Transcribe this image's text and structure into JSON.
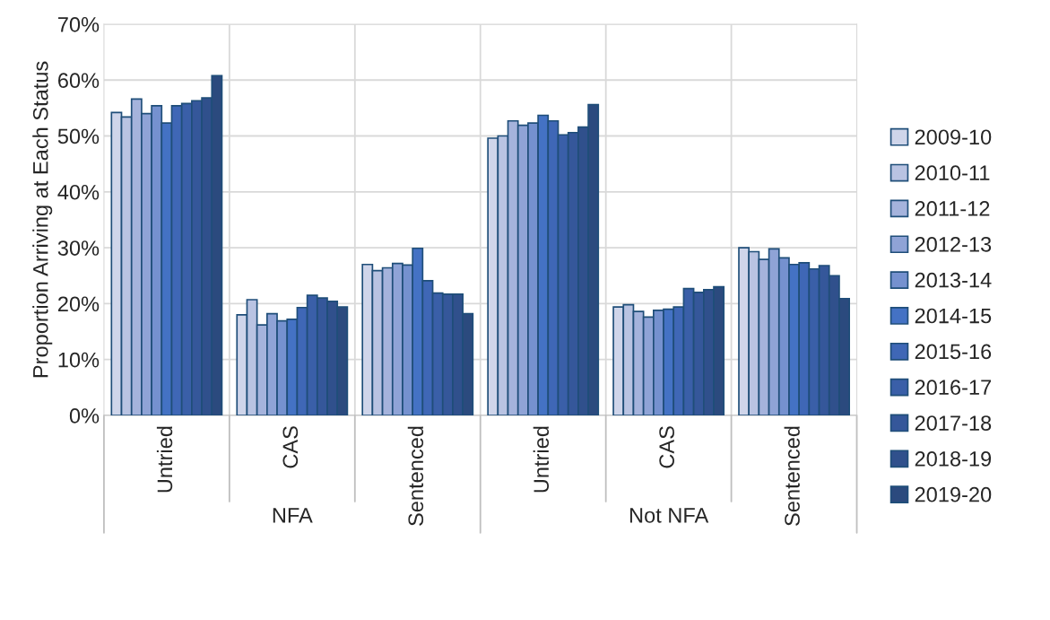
{
  "chart_data": {
    "type": "bar",
    "ylabel": "Proportion Arriving at Each Status",
    "categories": [
      "Untried",
      "CAS",
      "Sentenced",
      "Untried",
      "CAS",
      "Sentenced"
    ],
    "annotations": [
      "NFA",
      "Not NFA"
    ],
    "ylim": [
      0,
      70
    ],
    "yticks": [
      {
        "value": 0,
        "label": "0%"
      },
      {
        "value": 10,
        "label": "10%"
      },
      {
        "value": 20,
        "label": "20%"
      },
      {
        "value": 30,
        "label": "30%"
      },
      {
        "value": 40,
        "label": "40%"
      },
      {
        "value": 50,
        "label": "50%"
      },
      {
        "value": 60,
        "label": "60%"
      },
      {
        "value": 70,
        "label": "70%"
      }
    ],
    "grid": true,
    "legend": "right",
    "series": [
      {
        "name": "2009-10",
        "color": "#cfd5ea",
        "values": [
          54.2,
          18.0,
          27.0,
          49.6,
          19.4,
          30.0
        ]
      },
      {
        "name": "2010-11",
        "color": "#b9c3e2",
        "values": [
          53.4,
          20.7,
          25.9,
          50.0,
          19.8,
          29.3
        ]
      },
      {
        "name": "2011-12",
        "color": "#a5b3dc",
        "values": [
          56.6,
          16.2,
          26.4,
          52.7,
          18.6,
          27.9
        ]
      },
      {
        "name": "2012-13",
        "color": "#8fa3d6",
        "values": [
          54.0,
          18.2,
          27.2,
          51.9,
          17.6,
          29.8
        ]
      },
      {
        "name": "2013-14",
        "color": "#7591cf",
        "values": [
          55.4,
          16.9,
          26.9,
          52.3,
          18.8,
          28.2
        ]
      },
      {
        "name": "2014-15",
        "color": "#4472c4",
        "values": [
          52.3,
          17.2,
          29.9,
          53.7,
          19.0,
          27.0
        ]
      },
      {
        "name": "2015-16",
        "color": "#3f67b6",
        "values": [
          55.4,
          19.3,
          24.1,
          52.7,
          19.4,
          27.3
        ]
      },
      {
        "name": "2016-17",
        "color": "#3a5fa8",
        "values": [
          55.8,
          21.5,
          21.9,
          50.2,
          22.7,
          26.2
        ]
      },
      {
        "name": "2017-18",
        "color": "#35579a",
        "values": [
          56.3,
          21.0,
          21.7,
          50.6,
          22.0,
          26.8
        ]
      },
      {
        "name": "2018-19",
        "color": "#30508c",
        "values": [
          56.8,
          20.4,
          21.7,
          51.6,
          22.5,
          25.0
        ]
      },
      {
        "name": "2019-20",
        "color": "#2b4a7e",
        "values": [
          60.8,
          19.4,
          18.2,
          55.6,
          23.0,
          20.9
        ]
      }
    ]
  }
}
